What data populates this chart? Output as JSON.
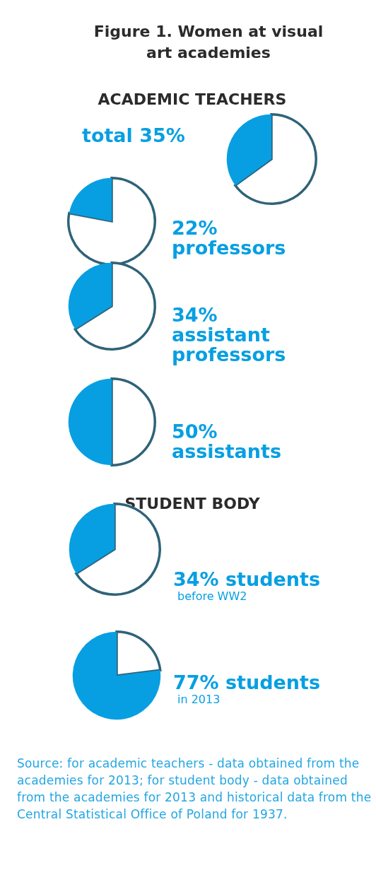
{
  "chart_data": [
    {
      "type": "other",
      "title": "Figure 1. Women at visual art academies"
    },
    {
      "type": "other",
      "title": "ACADEMIC TEACHERS"
    },
    {
      "type": "pie",
      "categories": [
        null,
        null
      ],
      "values": [
        65,
        35
      ],
      "colors": [
        "#ffffff",
        "#079fe2"
      ],
      "annotations": [
        "total 35%"
      ]
    },
    {
      "type": "pie",
      "categories": [
        null,
        null
      ],
      "values": [
        78,
        22
      ],
      "colors": [
        "#ffffff",
        "#079fe2"
      ],
      "annotations": [
        "22%",
        "professors"
      ]
    },
    {
      "type": "pie",
      "categories": [
        null,
        null
      ],
      "values": [
        66,
        34
      ],
      "colors": [
        "#ffffff",
        "#079fe2"
      ],
      "annotations": [
        "34%",
        "assistant",
        "professors"
      ]
    },
    {
      "type": "pie",
      "categories": [
        null,
        null
      ],
      "values": [
        50,
        50
      ],
      "colors": [
        "#ffffff",
        "#079fe2"
      ],
      "annotations": [
        "50%",
        "assistants"
      ]
    },
    {
      "type": "other",
      "title": "STUDENT BODY"
    },
    {
      "type": "pie",
      "categories": [
        null,
        null
      ],
      "values": [
        66,
        34
      ],
      "colors": [
        "#ffffff",
        "#079fe2"
      ],
      "annotations": [
        "34% students",
        "before WW2"
      ]
    },
    {
      "type": "pie",
      "categories": [
        null,
        null
      ],
      "values": [
        23,
        77
      ],
      "colors": [
        "#ffffff",
        "#079fe2"
      ],
      "annotations": [
        "77% students",
        "in 2013"
      ]
    },
    {
      "type": "other",
      "annotations": [
        "Source: for academic teachers - data obtained from the academies for 2013; for student body - data obtained from the academies for 2013 and historical data from the Central Statistical Office of Poland for 1937."
      ]
    }
  ]
}
